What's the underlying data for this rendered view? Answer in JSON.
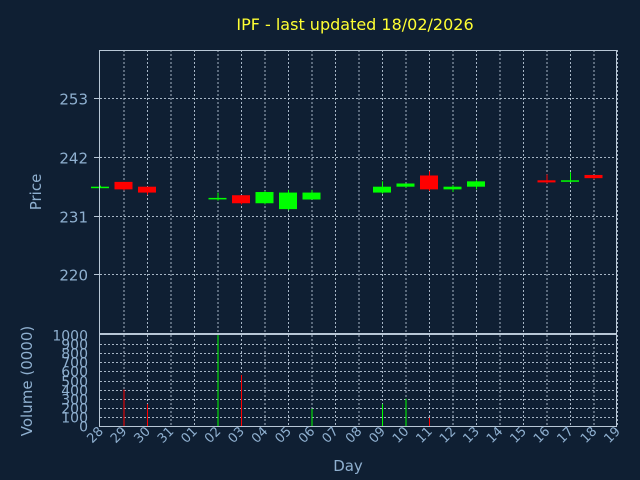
{
  "chart_data": [
    {
      "type": "candlestick",
      "title": "IPF - last updated 18/02/2026",
      "ylabel": "Price",
      "ylim": [
        209,
        262
      ],
      "yticks": [
        220,
        231,
        242,
        253
      ],
      "x_tick_labels": [
        "28",
        "29",
        "30",
        "31",
        "01",
        "02",
        "03",
        "04",
        "05",
        "06",
        "07",
        "08",
        "09",
        "10",
        "11",
        "12",
        "13",
        "14",
        "15",
        "16",
        "17",
        "18",
        "19"
      ],
      "grid": true,
      "colors": {
        "up": "#00ff00",
        "down": "#ff0000"
      },
      "candles": [
        {
          "day": "28",
          "open": 236.4,
          "high": 236.6,
          "low": 236.2,
          "close": 236.4
        },
        {
          "day": "29",
          "open": 237.3,
          "high": 237.3,
          "low": 235.7,
          "close": 235.9
        },
        {
          "day": "30",
          "open": 236.4,
          "high": 236.4,
          "low": 234.9,
          "close": 235.3
        },
        {
          "day": "02",
          "open": 234.3,
          "high": 235.3,
          "low": 233.8,
          "close": 234.3
        },
        {
          "day": "03",
          "open": 234.8,
          "high": 234.8,
          "low": 233.1,
          "close": 233.3
        },
        {
          "day": "04",
          "open": 233.3,
          "high": 235.6,
          "low": 233.1,
          "close": 235.4
        },
        {
          "day": "05",
          "open": 232.2,
          "high": 235.8,
          "low": 232.0,
          "close": 235.3
        },
        {
          "day": "06",
          "open": 234.0,
          "high": 235.8,
          "low": 234.0,
          "close": 235.3
        },
        {
          "day": "09",
          "open": 235.3,
          "high": 237.4,
          "low": 235.1,
          "close": 236.4
        },
        {
          "day": "10",
          "open": 236.4,
          "high": 237.0,
          "low": 236.2,
          "close": 237.0
        },
        {
          "day": "11",
          "open": 238.5,
          "high": 239.3,
          "low": 235.6,
          "close": 235.9
        },
        {
          "day": "12",
          "open": 235.9,
          "high": 236.7,
          "low": 235.4,
          "close": 236.4
        },
        {
          "day": "13",
          "open": 236.4,
          "high": 237.6,
          "low": 235.9,
          "close": 237.4
        },
        {
          "day": "16",
          "open": 237.6,
          "high": 238.7,
          "low": 237.0,
          "close": 237.2
        },
        {
          "day": "17",
          "open": 237.6,
          "high": 239.1,
          "low": 237.2,
          "close": 237.6
        },
        {
          "day": "18",
          "open": 238.6,
          "high": 238.6,
          "low": 237.8,
          "close": 238.0
        }
      ]
    },
    {
      "type": "bar",
      "ylabel": "Volume (0000)",
      "xlabel": "Day",
      "ylim": [
        0,
        1000
      ],
      "yticks": [
        0,
        100,
        200,
        300,
        400,
        500,
        600,
        700,
        800,
        900,
        1000
      ],
      "ytick_labels": [
        "0",
        "100",
        "200",
        "300",
        "400",
        "500",
        "600",
        "700",
        "800",
        "900",
        "1000"
      ],
      "x_tick_labels": [
        "28",
        "29",
        "30",
        "31",
        "01",
        "02",
        "03",
        "04",
        "05",
        "06",
        "07",
        "08",
        "09",
        "10",
        "11",
        "12",
        "13",
        "14",
        "15",
        "16",
        "17",
        "18",
        "19"
      ],
      "bars": [
        {
          "day": "29",
          "value": 400,
          "direction": "down"
        },
        {
          "day": "30",
          "value": 240,
          "direction": "down"
        },
        {
          "day": "02",
          "value": 1000,
          "direction": "up"
        },
        {
          "day": "03",
          "value": 560,
          "direction": "down"
        },
        {
          "day": "06",
          "value": 190,
          "direction": "up"
        },
        {
          "day": "09",
          "value": 240,
          "direction": "up"
        },
        {
          "day": "10",
          "value": 300,
          "direction": "up"
        },
        {
          "day": "11",
          "value": 90,
          "direction": "down"
        }
      ]
    }
  ]
}
